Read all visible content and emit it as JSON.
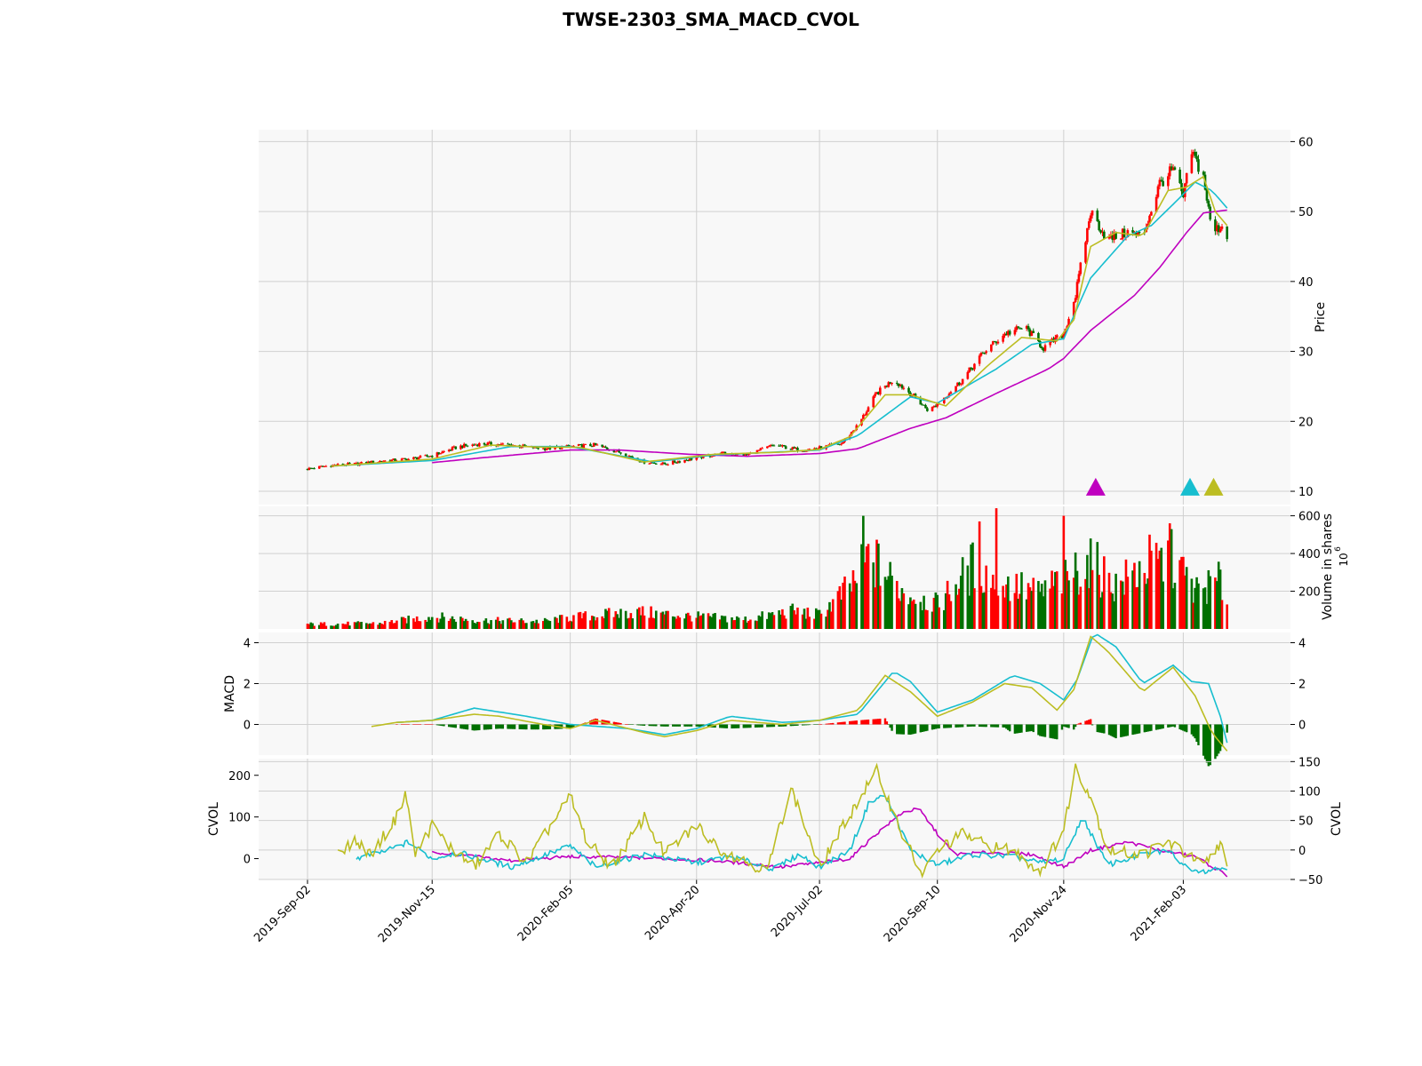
{
  "chart_data": {
    "type": "candlestick",
    "title": "TWSE-2303_SMA_MACD_CVOL",
    "date_ticks": [
      "2019-Sep-02",
      "2019-Nov-15",
      "2020-Feb-05",
      "2020-Apr-20",
      "2020-Jul-02",
      "2020-Sep-10",
      "2020-Nov-24",
      "2021-Feb-03"
    ],
    "x_range": [
      "2019-Sep-02",
      "2021-Mar-01"
    ],
    "colors": {
      "up": "#ff0000",
      "down": "#007000",
      "sma_short": "#bcbd22",
      "sma_mid": "#17becf",
      "sma_long": "#bf00bf",
      "panel_bg": "#f8f8f8",
      "grid": "#d0d0d0"
    },
    "price_panel": {
      "ylabel": "Price",
      "yticks": [
        10,
        20,
        30,
        40,
        50,
        60
      ],
      "ylim": [
        8.1,
        61.7
      ],
      "close_anchors": [
        [
          "2019-09-02",
          13.2
        ],
        [
          "2019-09-16",
          13.7
        ],
        [
          "2019-10-01",
          13.9
        ],
        [
          "2019-10-15",
          14.3
        ],
        [
          "2019-11-01",
          14.6
        ],
        [
          "2019-11-15",
          15.1
        ],
        [
          "2019-12-01",
          16.4
        ],
        [
          "2019-12-15",
          16.8
        ],
        [
          "2020-01-01",
          16.6
        ],
        [
          "2020-01-20",
          16.1
        ],
        [
          "2020-02-05",
          16.4
        ],
        [
          "2020-02-20",
          16.6
        ],
        [
          "2020-03-05",
          15.6
        ],
        [
          "2020-03-20",
          14.2
        ],
        [
          "2020-04-01",
          13.9
        ],
        [
          "2020-04-20",
          14.8
        ],
        [
          "2020-05-05",
          15.4
        ],
        [
          "2020-05-20",
          15.2
        ],
        [
          "2020-06-05",
          16.6
        ],
        [
          "2020-06-20",
          15.9
        ],
        [
          "2020-07-02",
          16.2
        ],
        [
          "2020-07-15",
          16.8
        ],
        [
          "2020-07-25",
          19.5
        ],
        [
          "2020-08-05",
          24.0
        ],
        [
          "2020-08-15",
          26.0
        ],
        [
          "2020-08-25",
          24.0
        ],
        [
          "2020-09-05",
          21.5
        ],
        [
          "2020-09-10",
          22.5
        ],
        [
          "2020-09-25",
          26.0
        ],
        [
          "2020-10-08",
          30.0
        ],
        [
          "2020-10-20",
          32.5
        ],
        [
          "2020-11-01",
          33.5
        ],
        [
          "2020-11-12",
          30.5
        ],
        [
          "2020-11-24",
          32.5
        ],
        [
          "2020-12-01",
          38.0
        ],
        [
          "2020-12-10",
          50.0
        ],
        [
          "2020-12-20",
          46.0
        ],
        [
          "2021-01-01",
          47.0
        ],
        [
          "2021-01-10",
          46.5
        ],
        [
          "2021-01-20",
          54.0
        ],
        [
          "2021-01-28",
          56.0
        ],
        [
          "2021-02-03",
          52.0
        ],
        [
          "2021-02-08",
          58.5
        ],
        [
          "2021-02-15",
          55.0
        ],
        [
          "2021-02-20",
          47.0
        ],
        [
          "2021-02-26",
          48.0
        ],
        [
          "2021-03-01",
          46.5
        ]
      ],
      "sma_short_anchors": [
        [
          "2019-09-16",
          13.6
        ],
        [
          "2019-11-15",
          14.6
        ],
        [
          "2019-12-20",
          16.6
        ],
        [
          "2020-01-20",
          16.3
        ],
        [
          "2020-02-10",
          16.3
        ],
        [
          "2020-03-20",
          14.2
        ],
        [
          "2020-05-01",
          15.3
        ],
        [
          "2020-06-10",
          15.6
        ],
        [
          "2020-07-02",
          16.0
        ],
        [
          "2020-07-20",
          17.8
        ],
        [
          "2020-08-10",
          23.8
        ],
        [
          "2020-08-25",
          23.8
        ],
        [
          "2020-09-15",
          22.2
        ],
        [
          "2020-10-10",
          28.0
        ],
        [
          "2020-10-30",
          32.0
        ],
        [
          "2020-11-20",
          31.5
        ],
        [
          "2020-11-30",
          34.5
        ],
        [
          "2020-12-10",
          45.0
        ],
        [
          "2020-12-25",
          47.0
        ],
        [
          "2021-01-10",
          46.5
        ],
        [
          "2021-01-25",
          53.0
        ],
        [
          "2021-02-05",
          53.5
        ],
        [
          "2021-02-15",
          55.0
        ],
        [
          "2021-02-22",
          50.0
        ],
        [
          "2021-03-01",
          48.0
        ]
      ],
      "sma_mid_anchors": [
        [
          "2019-09-16",
          13.6
        ],
        [
          "2019-11-15",
          14.4
        ],
        [
          "2020-01-01",
          16.4
        ],
        [
          "2020-02-05",
          16.4
        ],
        [
          "2020-03-25",
          14.2
        ],
        [
          "2020-05-01",
          15.2
        ],
        [
          "2020-07-02",
          15.9
        ],
        [
          "2020-07-25",
          18.0
        ],
        [
          "2020-08-25",
          23.5
        ],
        [
          "2020-09-10",
          22.6
        ],
        [
          "2020-10-15",
          27.5
        ],
        [
          "2020-11-05",
          31.0
        ],
        [
          "2020-11-24",
          31.8
        ],
        [
          "2020-12-10",
          40.5
        ],
        [
          "2021-01-01",
          46.5
        ],
        [
          "2021-01-15",
          48.0
        ],
        [
          "2021-01-30",
          51.5
        ],
        [
          "2021-02-10",
          54.2
        ],
        [
          "2021-02-20",
          53.0
        ],
        [
          "2021-03-01",
          50.5
        ]
      ],
      "sma_long_anchors": [
        [
          "2019-11-15",
          14.1
        ],
        [
          "2019-12-15",
          14.8
        ],
        [
          "2020-02-05",
          15.9
        ],
        [
          "2020-03-05",
          15.9
        ],
        [
          "2020-04-15",
          15.3
        ],
        [
          "2020-05-20",
          15.0
        ],
        [
          "2020-07-02",
          15.4
        ],
        [
          "2020-07-25",
          16.1
        ],
        [
          "2020-08-25",
          19.0
        ],
        [
          "2020-09-15",
          20.5
        ],
        [
          "2020-10-15",
          24.0
        ],
        [
          "2020-11-15",
          27.5
        ],
        [
          "2020-11-24",
          29.0
        ],
        [
          "2020-12-10",
          33.0
        ],
        [
          "2021-01-05",
          38.0
        ],
        [
          "2021-01-20",
          42.0
        ],
        [
          "2021-02-05",
          47.0
        ],
        [
          "2021-02-15",
          49.8
        ],
        [
          "2021-03-01",
          50.2
        ]
      ],
      "markers": [
        {
          "date": "2020-12-13",
          "price": 10.4,
          "color": "#bf00bf"
        },
        {
          "date": "2021-02-07",
          "price": 10.4,
          "color": "#17becf"
        },
        {
          "date": "2021-02-21",
          "price": 10.4,
          "color": "#bcbd22"
        }
      ]
    },
    "volume_panel": {
      "ylabel": "Volume in shares",
      "multiplier": "10^6",
      "yticks": [
        200,
        400,
        600
      ],
      "ylim": [
        0,
        650
      ],
      "anchors": [
        [
          "2019-09-02",
          25
        ],
        [
          "2019-10-15",
          30
        ],
        [
          "2019-11-15",
          65
        ],
        [
          "2019-12-15",
          45
        ],
        [
          "2020-01-20",
          40
        ],
        [
          "2020-02-05",
          60
        ],
        [
          "2020-03-15",
          90
        ],
        [
          "2020-04-20",
          65
        ],
        [
          "2020-05-20",
          50
        ],
        [
          "2020-06-15",
          95
        ],
        [
          "2020-07-02",
          75
        ],
        [
          "2020-07-20",
          220
        ],
        [
          "2020-08-01",
          380
        ],
        [
          "2020-08-20",
          200
        ],
        [
          "2020-09-10",
          130
        ],
        [
          "2020-10-01",
          330
        ],
        [
          "2020-10-20",
          240
        ],
        [
          "2020-11-10",
          190
        ],
        [
          "2020-11-24",
          270
        ],
        [
          "2020-12-10",
          350
        ],
        [
          "2020-12-25",
          230
        ],
        [
          "2021-01-10",
          320
        ],
        [
          "2021-01-28",
          370
        ],
        [
          "2021-02-10",
          200
        ],
        [
          "2021-02-25",
          250
        ],
        [
          "2021-03-01",
          150
        ]
      ],
      "spikes": [
        [
          "2020-07-26",
          560
        ],
        [
          "2020-07-28",
          600
        ],
        [
          "2020-10-15",
          640
        ],
        [
          "2020-10-05",
          570
        ],
        [
          "2020-11-24",
          600
        ],
        [
          "2020-12-12",
          460
        ],
        [
          "2021-01-26",
          560
        ],
        [
          "2021-01-14",
          500
        ]
      ]
    },
    "macd_panel": {
      "ylabel": "MACD",
      "yticks": [
        0,
        2,
        4
      ],
      "ylim": [
        -1.5,
        4.5
      ],
      "macd_anchors": [
        [
          "2019-10-10",
          -0.1
        ],
        [
          "2019-10-25",
          0.1
        ],
        [
          "2019-11-15",
          0.2
        ],
        [
          "2019-12-10",
          0.5
        ],
        [
          "2019-12-25",
          0.4
        ],
        [
          "2020-01-20",
          0.0
        ],
        [
          "2020-02-05",
          -0.2
        ],
        [
          "2020-02-20",
          0.2
        ],
        [
          "2020-03-20",
          -0.4
        ],
        [
          "2020-04-01",
          -0.6
        ],
        [
          "2020-04-20",
          -0.3
        ],
        [
          "2020-05-10",
          0.2
        ],
        [
          "2020-06-10",
          0.0
        ],
        [
          "2020-07-02",
          0.2
        ],
        [
          "2020-07-25",
          0.7
        ],
        [
          "2020-08-10",
          2.4
        ],
        [
          "2020-08-25",
          1.6
        ],
        [
          "2020-09-10",
          0.4
        ],
        [
          "2020-10-01",
          1.1
        ],
        [
          "2020-10-20",
          2.0
        ],
        [
          "2020-11-05",
          1.8
        ],
        [
          "2020-11-20",
          0.7
        ],
        [
          "2020-11-30",
          1.7
        ],
        [
          "2020-12-10",
          4.3
        ],
        [
          "2020-12-20",
          3.6
        ],
        [
          "2021-01-10",
          1.6
        ],
        [
          "2021-01-28",
          2.8
        ],
        [
          "2021-02-10",
          1.4
        ],
        [
          "2021-02-20",
          -0.4
        ],
        [
          "2021-03-01",
          -1.3
        ]
      ],
      "signal_anchors": [
        [
          "2019-10-25",
          0.1
        ],
        [
          "2019-11-15",
          0.2
        ],
        [
          "2019-12-10",
          0.8
        ],
        [
          "2020-01-10",
          0.4
        ],
        [
          "2020-02-05",
          0.0
        ],
        [
          "2020-03-10",
          -0.2
        ],
        [
          "2020-04-01",
          -0.5
        ],
        [
          "2020-04-20",
          -0.2
        ],
        [
          "2020-05-10",
          0.4
        ],
        [
          "2020-06-10",
          0.1
        ],
        [
          "2020-07-02",
          0.2
        ],
        [
          "2020-07-25",
          0.5
        ],
        [
          "2020-08-15",
          2.6
        ],
        [
          "2020-08-25",
          2.1
        ],
        [
          "2020-09-10",
          0.6
        ],
        [
          "2020-10-01",
          1.2
        ],
        [
          "2020-10-25",
          2.4
        ],
        [
          "2020-11-10",
          2.0
        ],
        [
          "2020-11-24",
          1.2
        ],
        [
          "2020-12-02",
          2.2
        ],
        [
          "2020-12-12",
          4.5
        ],
        [
          "2020-12-25",
          3.8
        ],
        [
          "2021-01-10",
          2.0
        ],
        [
          "2021-01-28",
          2.9
        ],
        [
          "2021-02-08",
          2.1
        ],
        [
          "2021-02-18",
          2.0
        ],
        [
          "2021-02-25",
          0.4
        ],
        [
          "2021-03-01",
          -0.9
        ]
      ]
    },
    "cvol_panel": {
      "ylabel_left": "CVOL",
      "ylabel_right": "CVOL",
      "yticks_left": [
        0,
        100,
        200
      ],
      "yticks_right": [
        -50,
        0,
        50,
        100,
        150
      ],
      "ylim_left": [
        -50,
        240
      ],
      "ylim_right": [
        -50,
        155
      ],
      "short_anchors": [
        [
          "2019-09-20",
          20
        ],
        [
          "2019-10-01",
          40
        ],
        [
          "2019-10-10",
          10
        ],
        [
          "2019-10-25",
          100
        ],
        [
          "2019-10-30",
          160
        ],
        [
          "2019-11-05",
          10
        ],
        [
          "2019-11-15",
          80
        ],
        [
          "2019-11-25",
          30
        ],
        [
          "2019-12-10",
          -20
        ],
        [
          "2019-12-25",
          60
        ],
        [
          "2020-01-10",
          -10
        ],
        [
          "2020-02-05",
          150
        ],
        [
          "2020-02-15",
          40
        ],
        [
          "2020-03-01",
          -20
        ],
        [
          "2020-03-20",
          100
        ],
        [
          "2020-04-01",
          10
        ],
        [
          "2020-04-20",
          80
        ],
        [
          "2020-05-05",
          20
        ],
        [
          "2020-06-01",
          -30
        ],
        [
          "2020-06-15",
          170
        ],
        [
          "2020-07-02",
          -20
        ],
        [
          "2020-07-25",
          140
        ],
        [
          "2020-08-05",
          210
        ],
        [
          "2020-08-20",
          60
        ],
        [
          "2020-09-01",
          -40
        ],
        [
          "2020-09-10",
          20
        ],
        [
          "2020-09-25",
          60
        ],
        [
          "2020-10-10",
          30
        ],
        [
          "2020-10-25",
          20
        ],
        [
          "2020-11-10",
          -30
        ],
        [
          "2020-11-24",
          70
        ],
        [
          "2020-12-01",
          220
        ],
        [
          "2020-12-10",
          150
        ],
        [
          "2020-12-20",
          20
        ],
        [
          "2021-01-10",
          10
        ],
        [
          "2021-01-25",
          40
        ],
        [
          "2021-02-05",
          10
        ],
        [
          "2021-02-15",
          -20
        ],
        [
          "2021-02-25",
          40
        ],
        [
          "2021-03-01",
          -30
        ]
      ],
      "mid_anchors": [
        [
          "2019-10-01",
          0
        ],
        [
          "2019-10-20",
          20
        ],
        [
          "2019-11-01",
          40
        ],
        [
          "2019-11-15",
          0
        ],
        [
          "2019-11-30",
          15
        ],
        [
          "2020-01-01",
          -20
        ],
        [
          "2020-02-05",
          30
        ],
        [
          "2020-02-20",
          -20
        ],
        [
          "2020-03-20",
          10
        ],
        [
          "2020-04-20",
          -10
        ],
        [
          "2020-05-10",
          5
        ],
        [
          "2020-06-05",
          -25
        ],
        [
          "2020-06-20",
          10
        ],
        [
          "2020-07-02",
          -20
        ],
        [
          "2020-07-20",
          20
        ],
        [
          "2020-08-01",
          140
        ],
        [
          "2020-08-10",
          150
        ],
        [
          "2020-08-25",
          20
        ],
        [
          "2020-09-10",
          -15
        ],
        [
          "2020-10-01",
          10
        ],
        [
          "2020-10-25",
          5
        ],
        [
          "2020-11-10",
          -10
        ],
        [
          "2020-11-24",
          0
        ],
        [
          "2020-12-05",
          100
        ],
        [
          "2020-12-20",
          -15
        ],
        [
          "2021-01-10",
          10
        ],
        [
          "2021-01-25",
          20
        ],
        [
          "2021-02-05",
          -20
        ],
        [
          "2021-02-15",
          -30
        ],
        [
          "2021-03-01",
          -20
        ]
      ],
      "long_anchors": [
        [
          "2019-11-15",
          15
        ],
        [
          "2019-12-10",
          5
        ],
        [
          "2020-01-01",
          -5
        ],
        [
          "2020-02-05",
          5
        ],
        [
          "2020-03-20",
          2
        ],
        [
          "2020-05-01",
          -5
        ],
        [
          "2020-06-10",
          -20
        ],
        [
          "2020-07-02",
          -10
        ],
        [
          "2020-07-20",
          0
        ],
        [
          "2020-08-05",
          60
        ],
        [
          "2020-08-20",
          110
        ],
        [
          "2020-08-30",
          120
        ],
        [
          "2020-09-10",
          60
        ],
        [
          "2020-09-20",
          10
        ],
        [
          "2020-10-10",
          15
        ],
        [
          "2020-11-05",
          10
        ],
        [
          "2020-11-24",
          -20
        ],
        [
          "2020-12-10",
          20
        ],
        [
          "2021-01-01",
          40
        ],
        [
          "2021-01-20",
          20
        ],
        [
          "2021-02-10",
          5
        ],
        [
          "2021-03-01",
          -40
        ]
      ]
    }
  }
}
